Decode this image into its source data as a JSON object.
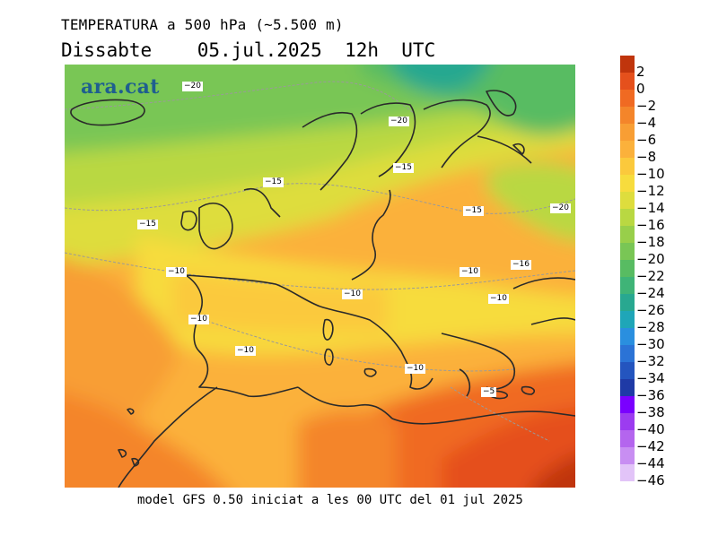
{
  "title_line1": "TEMPERATURA a 500 hPa (~5.500 m)",
  "title_line2": "Dissabte    05.jul.2025  12h  UTC",
  "footer": "model GFS 0.50 iniciat a les 00 UTC del 01 jul 2025",
  "logo": "ara.cat",
  "contour_labels": [
    "−20",
    "−20",
    "−15",
    "−15",
    "−15",
    "−15",
    "−20",
    "−10",
    "−10",
    "−16",
    "−10",
    "−10",
    "−10",
    "−10",
    "−10",
    "−5"
  ],
  "legend": [
    {
      "label": "2",
      "color": "#c0350c"
    },
    {
      "label": "0",
      "color": "#e5501c"
    },
    {
      "label": "−2",
      "color": "#f06a22"
    },
    {
      "label": "−4",
      "color": "#f4852a"
    },
    {
      "label": "−6",
      "color": "#f89e34"
    },
    {
      "label": "−8",
      "color": "#fbb13b"
    },
    {
      "label": "−10",
      "color": "#fbc93c"
    },
    {
      "label": "−12",
      "color": "#f7dc3d"
    },
    {
      "label": "−14",
      "color": "#dedd3d"
    },
    {
      "label": "−16",
      "color": "#b9d842"
    },
    {
      "label": "−18",
      "color": "#98cf4a"
    },
    {
      "label": "−20",
      "color": "#79c655"
    },
    {
      "label": "−22",
      "color": "#58bc62"
    },
    {
      "label": "−24",
      "color": "#3fb477"
    },
    {
      "label": "−26",
      "color": "#28a890"
    },
    {
      "label": "−28",
      "color": "#1fa6b8"
    },
    {
      "label": "−30",
      "color": "#2a8fdf"
    },
    {
      "label": "−32",
      "color": "#2b73d6"
    },
    {
      "label": "−34",
      "color": "#2455bf"
    },
    {
      "label": "−36",
      "color": "#1f3aa6"
    },
    {
      "label": "−38",
      "color": "#7a00ff"
    },
    {
      "label": "−40",
      "color": "#9c3cf0"
    },
    {
      "label": "−42",
      "color": "#b465ee"
    },
    {
      "label": "−44",
      "color": "#c88ef2"
    },
    {
      "label": "−46",
      "color": "#e2c4f8"
    }
  ]
}
